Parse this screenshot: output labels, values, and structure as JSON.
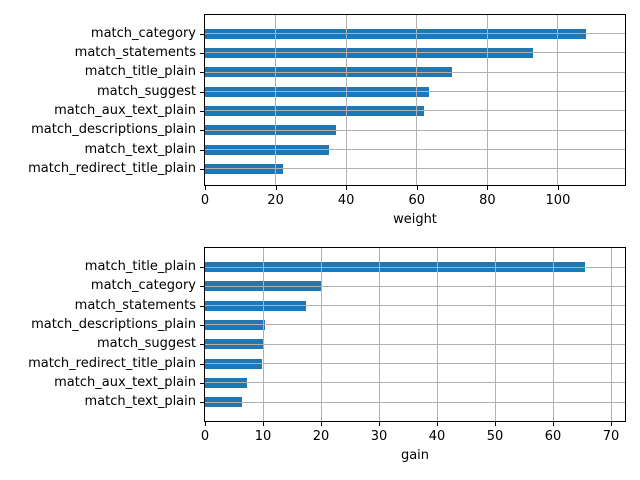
{
  "figure": {
    "background": "#ffffff",
    "bar_color": "#1f77b4",
    "grid_color": "#b0b0b0",
    "spine_color": "#000000"
  },
  "chart_data": [
    {
      "type": "bar",
      "orientation": "horizontal",
      "title": "",
      "xlabel": "weight",
      "ylabel": "",
      "categories": [
        "match_category",
        "match_statements",
        "match_title_plain",
        "match_suggest",
        "match_aux_text_plain",
        "match_descriptions_plain",
        "match_text_plain",
        "match_redirect_title_plain"
      ],
      "values": [
        108,
        93,
        70,
        63.5,
        62,
        37,
        35,
        22
      ],
      "xticks": [
        0,
        20,
        40,
        60,
        80,
        100
      ],
      "xlim": [
        0,
        119
      ],
      "grid": true,
      "legend": false,
      "bar_color": "#1f77b4"
    },
    {
      "type": "bar",
      "orientation": "horizontal",
      "title": "",
      "xlabel": "gain",
      "ylabel": "",
      "categories": [
        "match_title_plain",
        "match_category",
        "match_statements",
        "match_descriptions_plain",
        "match_suggest",
        "match_redirect_title_plain",
        "match_aux_text_plain",
        "match_text_plain"
      ],
      "values": [
        65.5,
        20.2,
        17.4,
        10.3,
        10.0,
        9.8,
        7.2,
        6.3
      ],
      "xticks": [
        0,
        10,
        20,
        30,
        40,
        50,
        60,
        70
      ],
      "xlim": [
        0,
        72.4
      ],
      "grid": true,
      "legend": false,
      "bar_color": "#1f77b4"
    }
  ]
}
